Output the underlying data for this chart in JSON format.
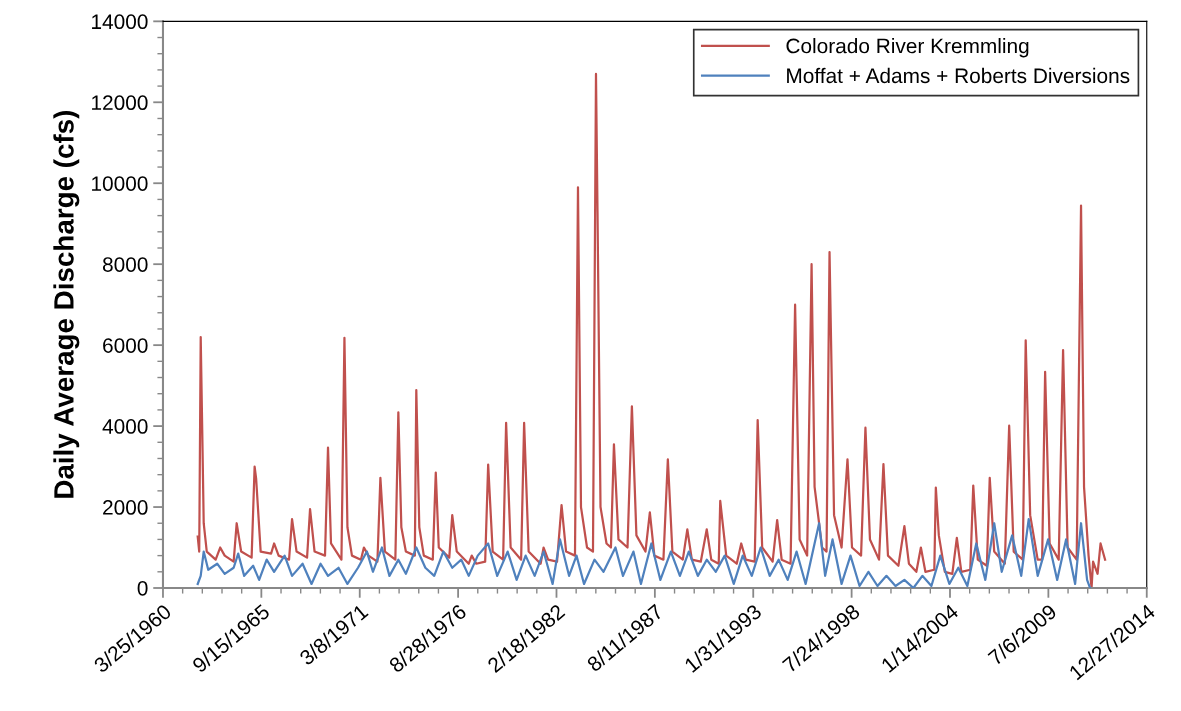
{
  "chart_data": {
    "type": "line",
    "ylabel": "Daily Average Discharge (cfs)",
    "xlim": [
      "1960-03-25",
      "2014-12-27"
    ],
    "xticks": [
      {
        "value": "1960-03-25",
        "label": "3/25/1960"
      },
      {
        "value": "1965-09-15",
        "label": "9/15/1965"
      },
      {
        "value": "1971-03-08",
        "label": "3/8/1971"
      },
      {
        "value": "1976-08-28",
        "label": "8/28/1976"
      },
      {
        "value": "1982-02-18",
        "label": "2/18/1982"
      },
      {
        "value": "1987-08-11",
        "label": "8/11/1987"
      },
      {
        "value": "1993-01-31",
        "label": "1/31/1993"
      },
      {
        "value": "1998-07-24",
        "label": "7/24/1998"
      },
      {
        "value": "2004-01-14",
        "label": "1/14/2004"
      },
      {
        "value": "2009-07-06",
        "label": "7/6/2009"
      },
      {
        "value": "2014-12-27",
        "label": "12/27/2014"
      }
    ],
    "ylim": [
      0,
      14000
    ],
    "yticks": [
      0,
      2000,
      4000,
      6000,
      8000,
      10000,
      12000,
      14000
    ],
    "grid": false,
    "legend": "top right",
    "marker": "none",
    "line_style": "solid",
    "series": [
      {
        "name": "Colorado River Kremmling",
        "color": "#c0504d",
        "x": [
          "1962-03",
          "1962-04",
          "1962-05",
          "1962-06",
          "1962-07",
          "1962-09",
          "1963-03",
          "1963-06",
          "1963-09",
          "1964-03",
          "1964-05",
          "1964-08",
          "1965-03",
          "1965-05",
          "1965-06",
          "1965-09",
          "1966-04",
          "1966-06",
          "1966-09",
          "1967-04",
          "1967-06",
          "1967-09",
          "1968-04",
          "1968-06",
          "1968-09",
          "1969-04",
          "1969-06",
          "1969-08",
          "1970-03",
          "1970-05",
          "1970-07",
          "1970-10",
          "1971-04",
          "1971-06",
          "1971-09",
          "1972-03",
          "1972-05",
          "1972-08",
          "1973-03",
          "1973-05",
          "1973-07",
          "1973-10",
          "1974-04",
          "1974-05",
          "1974-07",
          "1974-10",
          "1975-04",
          "1975-06",
          "1975-08",
          "1976-03",
          "1976-05",
          "1976-08",
          "1977-04",
          "1977-06",
          "1977-09",
          "1978-03",
          "1978-05",
          "1978-08",
          "1979-03",
          "1979-05",
          "1979-08",
          "1980-03",
          "1980-05",
          "1980-08",
          "1981-04",
          "1981-06",
          "1981-09",
          "1982-03",
          "1982-06",
          "1982-09",
          "1983-03",
          "1983-05",
          "1983-07",
          "1983-11",
          "1984-03",
          "1984-05",
          "1984-06",
          "1984-08",
          "1984-12",
          "1985-03",
          "1985-05",
          "1985-08",
          "1986-02",
          "1986-05",
          "1986-08",
          "1987-02",
          "1987-05",
          "1987-08",
          "1988-02",
          "1988-05",
          "1988-08",
          "1989-03",
          "1989-06",
          "1989-09",
          "1990-03",
          "1990-07",
          "1990-10",
          "1991-03",
          "1991-04",
          "1991-08",
          "1992-03",
          "1992-06",
          "1992-09",
          "1993-03",
          "1993-05",
          "1993-08",
          "1994-03",
          "1994-06",
          "1994-09",
          "1995-03",
          "1995-06",
          "1995-09",
          "1996-02",
          "1996-05",
          "1996-07",
          "1996-12",
          "1997-03",
          "1997-05",
          "1997-08",
          "1998-01",
          "1998-05",
          "1998-08",
          "1999-02",
          "1999-05",
          "1999-08",
          "2000-02",
          "2000-05",
          "2000-08",
          "2001-03",
          "2001-07",
          "2001-10",
          "2002-03",
          "2002-06",
          "2002-09",
          "2003-03",
          "2003-04",
          "2003-06",
          "2003-10",
          "2004-03",
          "2004-06",
          "2004-09",
          "2005-03",
          "2005-05",
          "2005-08",
          "2006-02",
          "2006-04",
          "2006-07",
          "2007-02",
          "2007-05",
          "2007-08",
          "2008-02",
          "2008-04",
          "2008-07",
          "2008-12",
          "2009-03",
          "2009-05",
          "2009-08",
          "2010-02",
          "2010-05",
          "2010-08",
          "2011-02",
          "2011-05",
          "2011-07",
          "2011-10",
          "2011-12",
          "2012-01",
          "2012-04",
          "2012-06",
          "2012-09"
        ],
        "values": [
          1270,
          900,
          6200,
          3900,
          1600,
          900,
          700,
          1000,
          800,
          650,
          1600,
          900,
          750,
          3000,
          2700,
          900,
          850,
          1100,
          800,
          700,
          1700,
          900,
          750,
          1950,
          900,
          800,
          3470,
          1100,
          700,
          6180,
          1500,
          800,
          700,
          1000,
          800,
          650,
          2720,
          900,
          700,
          4340,
          1500,
          900,
          800,
          4890,
          1500,
          800,
          700,
          2850,
          1000,
          750,
          1800,
          900,
          600,
          800,
          600,
          650,
          3050,
          900,
          700,
          4080,
          1000,
          700,
          4080,
          900,
          600,
          1000,
          700,
          650,
          2050,
          900,
          800,
          9900,
          2000,
          1000,
          900,
          12700,
          9300,
          2000,
          1100,
          1000,
          3550,
          1200,
          1000,
          4490,
          1300,
          900,
          1870,
          800,
          700,
          3180,
          900,
          700,
          1450,
          700,
          650,
          1450,
          700,
          600,
          2150,
          800,
          600,
          1100,
          700,
          650,
          4150,
          1000,
          650,
          1680,
          700,
          600,
          7000,
          1200,
          800,
          8000,
          2500,
          1000,
          900,
          8300,
          1800,
          1000,
          3180,
          1000,
          800,
          3960,
          1200,
          700,
          3060,
          800,
          550,
          1530,
          600,
          400,
          1000,
          400,
          450,
          2480,
          1300,
          400,
          350,
          1240,
          400,
          450,
          2530,
          700,
          550,
          2720,
          900,
          600,
          4010,
          900,
          700,
          6120,
          1800,
          700,
          700,
          5340,
          1100,
          700,
          5880,
          1000,
          700,
          9450,
          2500,
          800,
          0,
          650,
          350,
          1100,
          700
        ]
      },
      {
        "name": "Moffat + Adams + Roberts Diversions",
        "color": "#4f81bd",
        "x": [
          "1962-03",
          "1962-05",
          "1962-07",
          "1962-10",
          "1963-04",
          "1963-09",
          "1964-03",
          "1964-06",
          "1964-10",
          "1965-04",
          "1965-08",
          "1966-01",
          "1966-06",
          "1967-01",
          "1967-06",
          "1968-01",
          "1968-07",
          "1969-01",
          "1969-06",
          "1970-01",
          "1970-07",
          "1971-02",
          "1971-08",
          "1971-12",
          "1972-06",
          "1972-11",
          "1973-05",
          "1973-10",
          "1974-05",
          "1974-11",
          "1975-05",
          "1975-11",
          "1976-05",
          "1976-11",
          "1977-04",
          "1977-10",
          "1978-05",
          "1978-11",
          "1979-06",
          "1979-12",
          "1980-06",
          "1980-12",
          "1981-06",
          "1981-12",
          "1982-05",
          "1982-11",
          "1983-04",
          "1983-09",
          "1984-04",
          "1984-10",
          "1985-06",
          "1985-11",
          "1986-06",
          "1986-11",
          "1987-06",
          "1987-12",
          "1988-07",
          "1989-01",
          "1989-07",
          "1990-01",
          "1990-07",
          "1991-01",
          "1991-07",
          "1992-01",
          "1992-07",
          "1993-01",
          "1993-07",
          "1994-01",
          "1994-07",
          "1995-01",
          "1995-07",
          "1996-01",
          "1996-07",
          "1996-10",
          "1997-02",
          "1997-07",
          "1998-01",
          "1998-07",
          "1999-01",
          "1999-07",
          "2000-01",
          "2000-07",
          "2001-01",
          "2001-07",
          "2002-01",
          "2002-07",
          "2003-01",
          "2003-07",
          "2004-01",
          "2004-07",
          "2005-01",
          "2005-07",
          "2006-01",
          "2006-07",
          "2006-12",
          "2007-07",
          "2008-01",
          "2008-06",
          "2008-12",
          "2009-07",
          "2010-01",
          "2010-07",
          "2011-01",
          "2011-05",
          "2011-09",
          "2011-11"
        ],
        "values": [
          100,
          300,
          900,
          450,
          600,
          350,
          500,
          850,
          300,
          550,
          200,
          700,
          400,
          800,
          300,
          600,
          100,
          600,
          300,
          500,
          100,
          500,
          900,
          400,
          1000,
          300,
          700,
          350,
          1000,
          500,
          300,
          900,
          500,
          700,
          300,
          800,
          1100,
          300,
          900,
          200,
          800,
          300,
          900,
          100,
          1200,
          300,
          800,
          100,
          700,
          400,
          1000,
          300,
          900,
          100,
          1100,
          200,
          900,
          300,
          900,
          300,
          700,
          400,
          800,
          100,
          800,
          300,
          1000,
          300,
          700,
          200,
          900,
          100,
          1100,
          1600,
          300,
          1200,
          100,
          800,
          50,
          400,
          50,
          300,
          50,
          200,
          0,
          300,
          50,
          800,
          100,
          500,
          50,
          1100,
          200,
          1600,
          400,
          1300,
          300,
          1700,
          300,
          1200,
          200,
          1200,
          100,
          1600,
          200,
          0
        ]
      }
    ]
  }
}
